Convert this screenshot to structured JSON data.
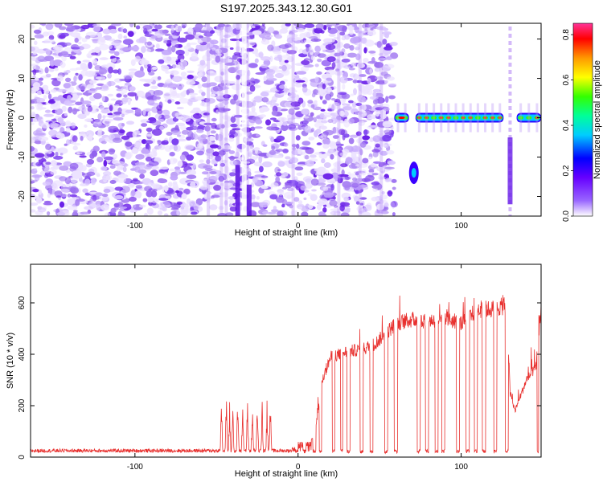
{
  "title": "S197.2025.343.12.30.G01",
  "chart_data": [
    {
      "type": "heatmap",
      "name": "spectrogram",
      "xlabel": "Height of straight line (km)",
      "ylabel": "Frequency (Hz)",
      "xlim": [
        -164,
        149
      ],
      "ylim": [
        -25,
        24
      ],
      "xticks": [
        -100,
        0,
        100
      ],
      "xtick_labels": [
        "-100",
        "0",
        "100"
      ],
      "yticks": [
        20,
        10,
        0,
        -10,
        -20
      ],
      "ytick_labels": [
        "20",
        "10",
        "0",
        "-10",
        "-20"
      ],
      "colorbar": {
        "label": "Normalized spectral amplitude",
        "range": [
          0.0,
          0.85
        ],
        "ticks": [
          0.0,
          0.2,
          0.4,
          0.6,
          0.8
        ],
        "tick_labels": [
          "0.0",
          "0.2",
          "0.4",
          "0.6",
          "0.8"
        ],
        "colormap": [
          "#ffffff",
          "#9966ff",
          "#6600ff",
          "#0000ff",
          "#00ccff",
          "#00ff99",
          "#33ff00",
          "#ffff00",
          "#ff9900",
          "#ff0000",
          "#ff3399"
        ]
      },
      "features": {
        "noise_region_km": [
          -164,
          59
        ],
        "carrier_frequency_hz": 0,
        "carrier_segments_km": [
          [
            59,
            68
          ],
          [
            72,
            126
          ],
          [
            134,
            149
          ]
        ],
        "low_frequency_blob": {
          "x_km": 71,
          "freq_hz": -14
        }
      }
    },
    {
      "type": "line",
      "name": "snr",
      "xlabel": "Height of straight line (km)",
      "ylabel": "SNR (10 * v/v)",
      "xlim": [
        -164,
        149
      ],
      "ylim": [
        0,
        750
      ],
      "xticks": [
        -100,
        0,
        100
      ],
      "xtick_labels": [
        "-100",
        "0",
        "100"
      ],
      "yticks": [
        0,
        200,
        400,
        600
      ],
      "ytick_labels": [
        "0",
        "200",
        "400",
        "600"
      ],
      "color": "#e8302e",
      "envelope": {
        "x": [
          -164,
          -50,
          -48,
          0,
          10,
          15,
          20,
          30,
          40,
          47,
          52,
          60,
          70,
          80,
          90,
          100,
          105,
          110,
          118,
          128,
          130,
          133,
          140,
          146,
          149
        ],
        "y": [
          18,
          20,
          22,
          25,
          80,
          300,
          390,
          410,
          420,
          440,
          470,
          520,
          535,
          530,
          540,
          520,
          545,
          575,
          575,
          590,
          250,
          180,
          300,
          350,
          600
        ]
      },
      "spike_x": [
        -47,
        -44,
        -42,
        -40,
        -37,
        -34,
        -31,
        -28,
        -25,
        -22,
        -19,
        -17
      ]
    }
  ]
}
